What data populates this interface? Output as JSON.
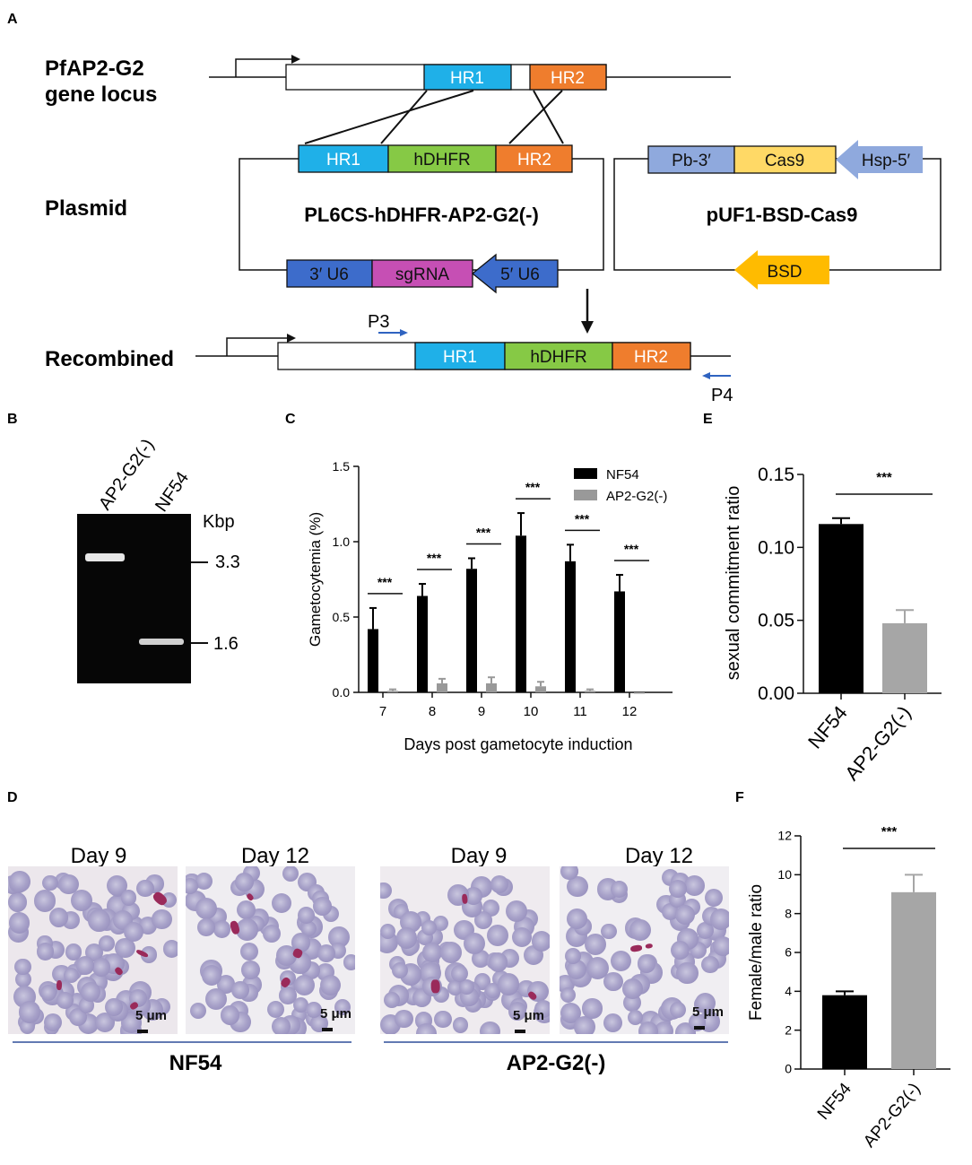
{
  "panels": {
    "a": "A",
    "b": "B",
    "c": "C",
    "d": "D",
    "e": "E",
    "f": "F"
  },
  "schematic": {
    "row_locus": [
      "PfAP2-G2",
      "gene locus"
    ],
    "row_plasmid": "Plasmid",
    "row_recombined": "Recombined",
    "plasmid1_name": "PL6CS-hDHFR-AP2-G2(-)",
    "plasmid2_name": "pUF1-BSD-Cas9",
    "hr1": "HR1",
    "hr2": "HR2",
    "hdhfr": "hDHFR",
    "u6_3": "3′ U6",
    "sgrna": "sgRNA",
    "u6_5": "5′ U6",
    "pb3": "Pb-3′",
    "cas9": "Cas9",
    "hsp5": "Hsp-5′",
    "bsd": "BSD",
    "p3": "P3",
    "p4": "P4",
    "colors": {
      "hr1": "#1fb0e8",
      "hr2": "#ef7d2d",
      "hdhfr": "#86c945",
      "u6": "#3d6ccb",
      "sgrna": "#c64fb4",
      "pb3": "#8fa9dd",
      "cas9": "#ffd966",
      "bsd": "#ffbb00",
      "primer": "#2f63c0"
    }
  },
  "gel": {
    "lane_labels": [
      "AP2-G2(-)",
      "NF54"
    ],
    "unit": "Kbp",
    "markers": [
      "3.3",
      "1.6"
    ]
  },
  "chart_data": [
    {
      "type": "bar",
      "panel": "C",
      "categories": [
        "7",
        "8",
        "9",
        "10",
        "11",
        "12"
      ],
      "series": [
        {
          "name": "NF54",
          "values": [
            0.42,
            0.64,
            0.82,
            1.04,
            0.87,
            0.67
          ],
          "errors": [
            0.14,
            0.08,
            0.07,
            0.15,
            0.11,
            0.11
          ],
          "color": "#000000"
        },
        {
          "name": "AP2-G2(-)",
          "values": [
            0.01,
            0.06,
            0.06,
            0.04,
            0.01,
            0.0
          ],
          "errors": [
            0.01,
            0.03,
            0.04,
            0.03,
            0.01,
            0.0
          ],
          "color": "#999999"
        }
      ],
      "xlabel": "Days post gametocyte induction",
      "ylabel": "Gametocytemia (%)",
      "ylim": [
        0,
        1.5
      ],
      "yticks": [
        "0.0",
        "0.5",
        "1.0",
        "1.5"
      ],
      "significance": [
        "***",
        "***",
        "***",
        "***",
        "***",
        "***"
      ],
      "legend": "top-right"
    },
    {
      "type": "bar",
      "panel": "E",
      "categories": [
        "NF54",
        "AP2-G2(-)"
      ],
      "values": [
        0.116,
        0.048
      ],
      "errors": [
        0.004,
        0.009
      ],
      "colors": [
        "#000000",
        "#a6a6a6"
      ],
      "ylabel": "sexual commitment ratio",
      "ylim": [
        0,
        0.15
      ],
      "yticks": [
        "0.00",
        "0.05",
        "0.10",
        "0.15"
      ],
      "significance": "***"
    },
    {
      "type": "bar",
      "panel": "F",
      "categories": [
        "NF54",
        "AP2-G2(-)"
      ],
      "values": [
        3.8,
        9.1
      ],
      "errors": [
        0.2,
        0.9
      ],
      "colors": [
        "#000000",
        "#a6a6a6"
      ],
      "ylabel": "Female/male ratio",
      "ylim": [
        0,
        12
      ],
      "yticks": [
        "0",
        "2",
        "4",
        "6",
        "8",
        "10",
        "12"
      ],
      "significance": "***"
    }
  ],
  "micrographs": {
    "images": [
      {
        "title": "Day 9",
        "scale": "5 μm"
      },
      {
        "title": "Day 12",
        "scale": "5 μm"
      },
      {
        "title": "Day 9",
        "scale": "5 μm"
      },
      {
        "title": "Day 12",
        "scale": "5 μm"
      }
    ],
    "groups": [
      "NF54",
      "AP2-G2(-)"
    ]
  }
}
